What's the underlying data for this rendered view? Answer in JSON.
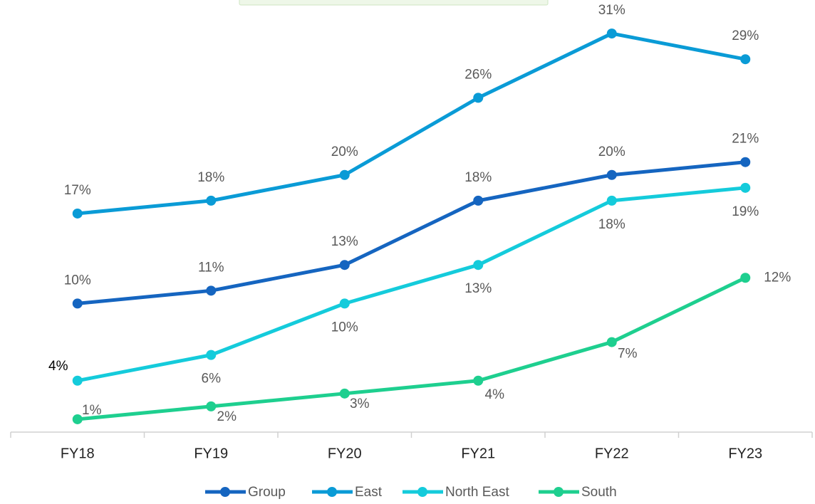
{
  "chart_data": {
    "type": "line",
    "categories": [
      "FY18",
      "FY19",
      "FY20",
      "FY21",
      "FY22",
      "FY23"
    ],
    "ylim": [
      0,
      32
    ],
    "series": [
      {
        "name": "Group",
        "color": "#1565c0",
        "values": [
          10,
          11,
          13,
          18,
          20,
          21
        ],
        "value_labels": [
          "10%",
          "11%",
          "13%",
          "18%",
          "20%",
          "21%"
        ]
      },
      {
        "name": "East",
        "color": "#0a9bd6",
        "values": [
          17,
          18,
          20,
          26,
          31,
          29
        ],
        "value_labels": [
          "17%",
          "18%",
          "20%",
          "26%",
          "31%",
          "29%"
        ]
      },
      {
        "name": "North East",
        "color": "#14cbdb",
        "values": [
          4,
          6,
          10,
          13,
          18,
          19
        ],
        "value_labels": [
          "4%",
          "6%",
          "10%",
          "13%",
          "18%",
          "19%"
        ]
      },
      {
        "name": "South",
        "color": "#1ecf8f",
        "values": [
          1,
          2,
          3,
          4,
          7,
          12
        ],
        "value_labels": [
          "1%",
          "2%",
          "3%",
          "4%",
          "7%",
          "12%"
        ]
      }
    ]
  }
}
